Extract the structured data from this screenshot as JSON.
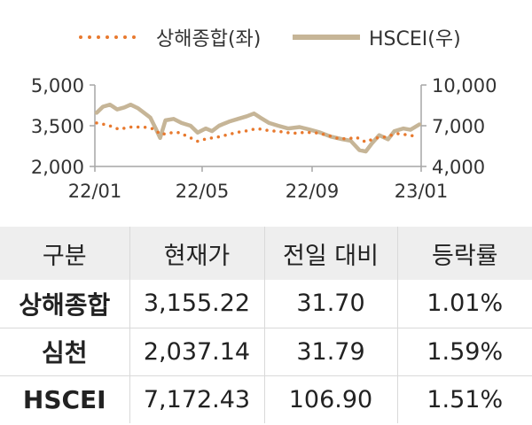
{
  "chart_data": {
    "type": "line",
    "title": "",
    "legend": {
      "placement": "top",
      "entries": [
        {
          "name": "상해종합(좌)",
          "style": "dotted",
          "color": "#E8792E"
        },
        {
          "name": "HSCEI(우)",
          "style": "solid",
          "color": "#C6B597"
        }
      ]
    },
    "x_tick_labels": [
      "22/01",
      "22/05",
      "22/09",
      "23/01"
    ],
    "x_ticks": [
      "2022-01-01",
      "2022-05-01",
      "2022-09-01",
      "2023-01-01"
    ],
    "x_range": [
      "2022-01-01",
      "2023-01-01"
    ],
    "y_left": {
      "ticks": [
        2000,
        3500,
        5000
      ],
      "tick_labels": [
        "2,000",
        "3,500",
        "5,000"
      ],
      "range": [
        2000,
        5000
      ]
    },
    "y_right": {
      "ticks": [
        4000,
        7000,
        10000
      ],
      "tick_labels": [
        "4,000",
        "7,000",
        "10,000"
      ],
      "range": [
        4000,
        10000
      ]
    },
    "grid": false,
    "series": [
      {
        "name": "상해종합(좌)",
        "axis": "left",
        "points": [
          [
            "2022-01-03",
            3600
          ],
          [
            "2022-01-15",
            3530
          ],
          [
            "2022-01-28",
            3370
          ],
          [
            "2022-02-10",
            3450
          ],
          [
            "2022-02-25",
            3450
          ],
          [
            "2022-03-08",
            3380
          ],
          [
            "2022-03-16",
            3170
          ],
          [
            "2022-03-25",
            3240
          ],
          [
            "2022-04-05",
            3250
          ],
          [
            "2022-04-15",
            3100
          ],
          [
            "2022-04-26",
            2930
          ],
          [
            "2022-05-06",
            3020
          ],
          [
            "2022-05-18",
            3080
          ],
          [
            "2022-05-31",
            3180
          ],
          [
            "2022-06-10",
            3260
          ],
          [
            "2022-06-20",
            3310
          ],
          [
            "2022-07-01",
            3400
          ],
          [
            "2022-07-15",
            3320
          ],
          [
            "2022-07-28",
            3280
          ],
          [
            "2022-08-10",
            3220
          ],
          [
            "2022-08-25",
            3260
          ],
          [
            "2022-09-08",
            3230
          ],
          [
            "2022-09-20",
            3130
          ],
          [
            "2022-09-30",
            3030
          ],
          [
            "2022-10-12",
            3020
          ],
          [
            "2022-10-20",
            3080
          ],
          [
            "2022-10-31",
            2900
          ],
          [
            "2022-11-10",
            3040
          ],
          [
            "2022-11-22",
            3090
          ],
          [
            "2022-12-05",
            3210
          ],
          [
            "2022-12-15",
            3170
          ],
          [
            "2022-12-28",
            3100
          ]
        ]
      },
      {
        "name": "HSCEI(우)",
        "axis": "right",
        "points": [
          [
            "2022-01-03",
            7950
          ],
          [
            "2022-01-10",
            8400
          ],
          [
            "2022-01-18",
            8550
          ],
          [
            "2022-01-26",
            8200
          ],
          [
            "2022-02-03",
            8350
          ],
          [
            "2022-02-10",
            8550
          ],
          [
            "2022-02-18",
            8300
          ],
          [
            "2022-02-25",
            7950
          ],
          [
            "2022-03-04",
            7600
          ],
          [
            "2022-03-10",
            6800
          ],
          [
            "2022-03-15",
            6100
          ],
          [
            "2022-03-21",
            7400
          ],
          [
            "2022-03-30",
            7500
          ],
          [
            "2022-04-08",
            7200
          ],
          [
            "2022-04-18",
            7000
          ],
          [
            "2022-04-26",
            6500
          ],
          [
            "2022-05-05",
            6800
          ],
          [
            "2022-05-12",
            6600
          ],
          [
            "2022-05-20",
            7000
          ],
          [
            "2022-05-31",
            7300
          ],
          [
            "2022-06-10",
            7500
          ],
          [
            "2022-06-20",
            7700
          ],
          [
            "2022-06-28",
            7900
          ],
          [
            "2022-07-05",
            7600
          ],
          [
            "2022-07-15",
            7200
          ],
          [
            "2022-07-25",
            7000
          ],
          [
            "2022-08-05",
            6800
          ],
          [
            "2022-08-18",
            6900
          ],
          [
            "2022-08-30",
            6700
          ],
          [
            "2022-09-10",
            6500
          ],
          [
            "2022-09-22",
            6200
          ],
          [
            "2022-10-05",
            6000
          ],
          [
            "2022-10-14",
            5900
          ],
          [
            "2022-10-24",
            5200
          ],
          [
            "2022-10-31",
            5100
          ],
          [
            "2022-11-07",
            5700
          ],
          [
            "2022-11-15",
            6300
          ],
          [
            "2022-11-25",
            6000
          ],
          [
            "2022-12-02",
            6600
          ],
          [
            "2022-12-12",
            6800
          ],
          [
            "2022-12-20",
            6700
          ],
          [
            "2022-12-30",
            7100
          ]
        ]
      }
    ]
  },
  "table": {
    "headers": [
      "구분",
      "현재가",
      "전일 대비",
      "등락률"
    ],
    "rows": [
      {
        "name": "상해종합",
        "price": "3,155.22",
        "change": "31.70",
        "rate": "1.01%"
      },
      {
        "name": "심천",
        "price": "2,037.14",
        "change": "31.79",
        "rate": "1.59%"
      },
      {
        "name": "HSCEI",
        "price": "7,172.43",
        "change": "106.90",
        "rate": "1.51%"
      }
    ]
  }
}
